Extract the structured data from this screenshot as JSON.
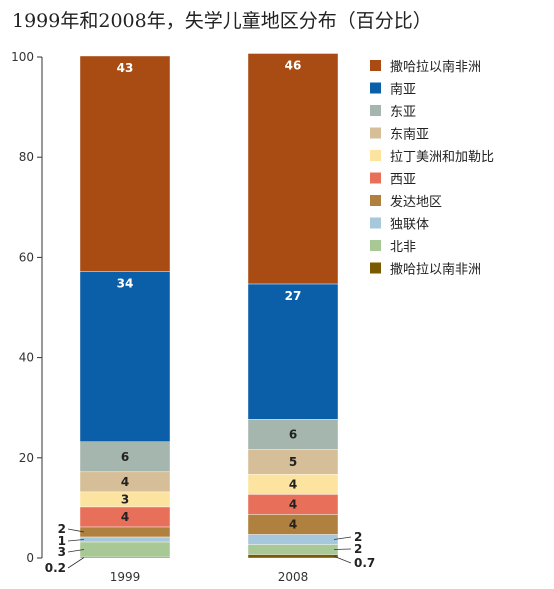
{
  "chart_data": {
    "type": "bar",
    "stacked": true,
    "title": "1999年和2008年，失学儿童地区分布（百分比）",
    "categories": [
      "1999",
      "2008"
    ],
    "ylim": [
      0,
      100
    ],
    "yticks": [
      0,
      20,
      40,
      60,
      80,
      100
    ],
    "legend_position": "right",
    "series": [
      {
        "name": "撒哈拉以南非洲",
        "color": "#7a5a00",
        "values": [
          0.2,
          0.7
        ],
        "labels": [
          "0.2",
          "0.7"
        ]
      },
      {
        "name": "北非",
        "color": "#a8c896",
        "values": [
          3,
          2
        ],
        "labels": [
          "3",
          "2"
        ]
      },
      {
        "name": "独联体",
        "color": "#a7c7dc",
        "values": [
          1,
          2
        ],
        "labels": [
          "1",
          "2"
        ]
      },
      {
        "name": "发达地区",
        "color": "#b0803e",
        "values": [
          2,
          4
        ],
        "labels": [
          "2",
          "4"
        ]
      },
      {
        "name": "西亚",
        "color": "#e8705a",
        "values": [
          4,
          4
        ],
        "labels": [
          "4",
          "4"
        ]
      },
      {
        "name": "拉丁美洲和加勒比",
        "color": "#fde3a0",
        "values": [
          3,
          4
        ],
        "labels": [
          "3",
          "4"
        ]
      },
      {
        "name": "东南亚",
        "color": "#d6bf98",
        "values": [
          4,
          5
        ],
        "labels": [
          "4",
          "5"
        ]
      },
      {
        "name": "东亚",
        "color": "#a5b6ae",
        "values": [
          6,
          6
        ],
        "labels": [
          "6",
          "6"
        ]
      },
      {
        "name": "南亚",
        "color": "#0b5fa8",
        "values": [
          34,
          27
        ],
        "labels": [
          "34",
          "27"
        ]
      },
      {
        "name": "撒哈拉以南非洲",
        "color": "#a84c14",
        "values": [
          43,
          46
        ],
        "labels": [
          "43",
          "46"
        ]
      }
    ]
  }
}
